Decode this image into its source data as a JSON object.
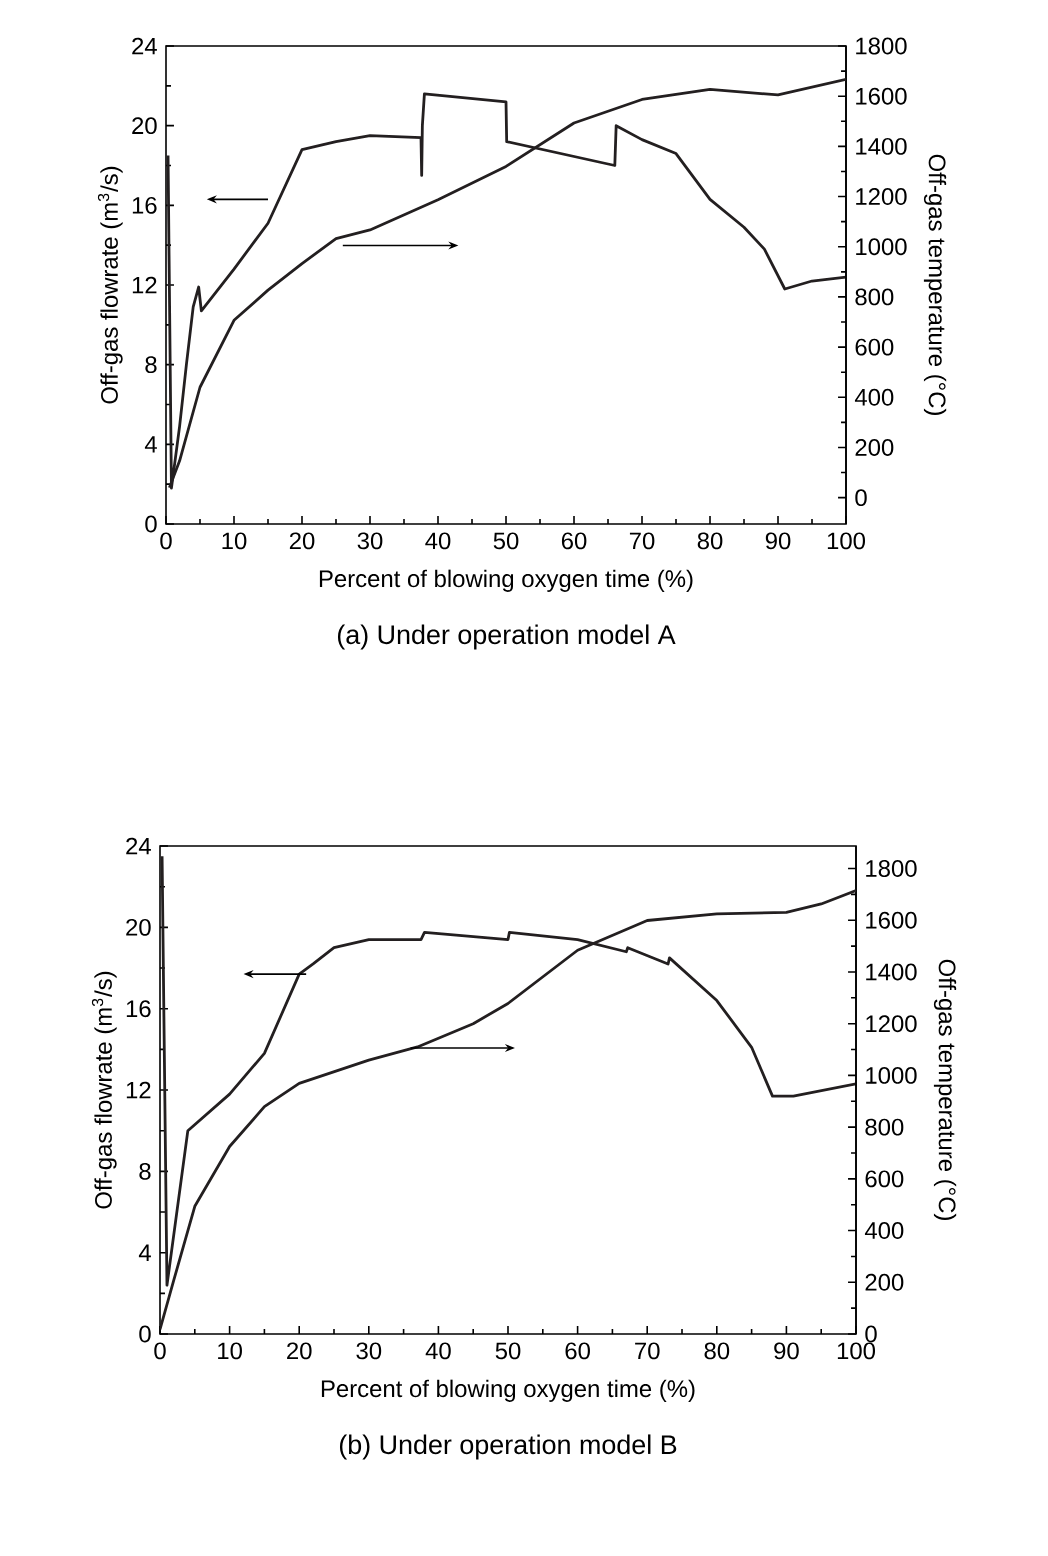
{
  "chart_data": [
    {
      "type": "line",
      "title": "(a) Under operation model A",
      "xlabel": "Percent of blowing oxygen time (%)",
      "ylabel": "Off-gas flowrate (m$^{3}$/s)",
      "y2label": "Off-gas temperature (°C)",
      "xlim": [
        0,
        100
      ],
      "xticks": [
        0,
        10,
        20,
        30,
        40,
        50,
        60,
        70,
        80,
        90,
        100
      ],
      "ylim": [
        0,
        24
      ],
      "yticks": [
        0,
        4,
        8,
        12,
        16,
        20,
        24
      ],
      "y2lim": [
        -105,
        1800
      ],
      "y2ticks": [
        0,
        200,
        400,
        600,
        800,
        1000,
        1200,
        1400,
        1600,
        1800
      ],
      "marker": "none",
      "line_style": "solid",
      "series": [
        {
          "color": "#231f20",
          "x": [
            0.3,
            0.8,
            2,
            3,
            4,
            4.8,
            5.2,
            10,
            15,
            20,
            25,
            30,
            37.5,
            37.6,
            37.7,
            38,
            50,
            50.1,
            66,
            66.2,
            70,
            75,
            80,
            85,
            88,
            91,
            95,
            100
          ],
          "values": [
            18.5,
            1.8,
            4.9,
            8,
            10.9,
            11.9,
            10.7,
            12.8,
            15.1,
            18.8,
            19.2,
            19.5,
            19.4,
            17.5,
            20,
            21.6,
            21.2,
            19.2,
            18,
            20,
            19.3,
            18.6,
            16.3,
            14.9,
            13.8,
            11.8,
            12.2,
            12.4
          ]
        },
        {
          "color": "#231f20",
          "axis": "y2",
          "x": [
            0.5,
            2,
            5,
            10,
            15,
            20,
            25,
            30,
            40,
            50,
            60,
            70,
            80,
            90,
            100
          ],
          "values": [
            40,
            147,
            440,
            707,
            827,
            933,
            1032,
            1067,
            1187,
            1320,
            1493,
            1587,
            1627,
            1605,
            1667
          ]
        }
      ]
    },
    {
      "type": "line",
      "title": "(b) Under operation model B",
      "xlabel": "Percent of blowing oxygen time (%)",
      "ylabel": "Off-gas flowrate (m$^{3}$/s)",
      "y2label": "Off-gas temperature (°C)",
      "xlim": [
        0,
        100
      ],
      "xticks": [
        0,
        10,
        20,
        30,
        40,
        50,
        60,
        70,
        80,
        90,
        100
      ],
      "ylim": [
        0,
        24
      ],
      "yticks": [
        0,
        4,
        8,
        12,
        16,
        20,
        24
      ],
      "y2lim": [
        0,
        1887
      ],
      "y2ticks": [
        0,
        200,
        400,
        600,
        800,
        1000,
        1200,
        1400,
        1600,
        1800
      ],
      "marker": "none",
      "line_style": "solid",
      "series": [
        {
          "color": "#231f20",
          "x": [
            0.3,
            1,
            4,
            10,
            15,
            20,
            22,
            25,
            30,
            37.5,
            38,
            50,
            50.2,
            60,
            67,
            67.2,
            73,
            73.2,
            80,
            85,
            88,
            91,
            100
          ],
          "values": [
            23.5,
            2.4,
            10,
            11.8,
            13.8,
            17.7,
            18.2,
            19,
            19.4,
            19.4,
            19.75,
            19.4,
            19.75,
            19.4,
            18.8,
            19,
            18.2,
            18.5,
            16.4,
            14.1,
            11.7,
            11.7,
            12.3
          ]
        },
        {
          "color": "#231f20",
          "axis": "y2",
          "x": [
            0,
            2,
            5,
            10,
            15,
            20,
            30,
            37,
            45,
            50,
            60,
            70,
            80,
            90,
            95,
            100
          ],
          "values": [
            18,
            210,
            494,
            725,
            879,
            969,
            1059,
            1110,
            1200,
            1278,
            1484,
            1599,
            1625,
            1630,
            1663,
            1715
          ]
        }
      ]
    }
  ]
}
